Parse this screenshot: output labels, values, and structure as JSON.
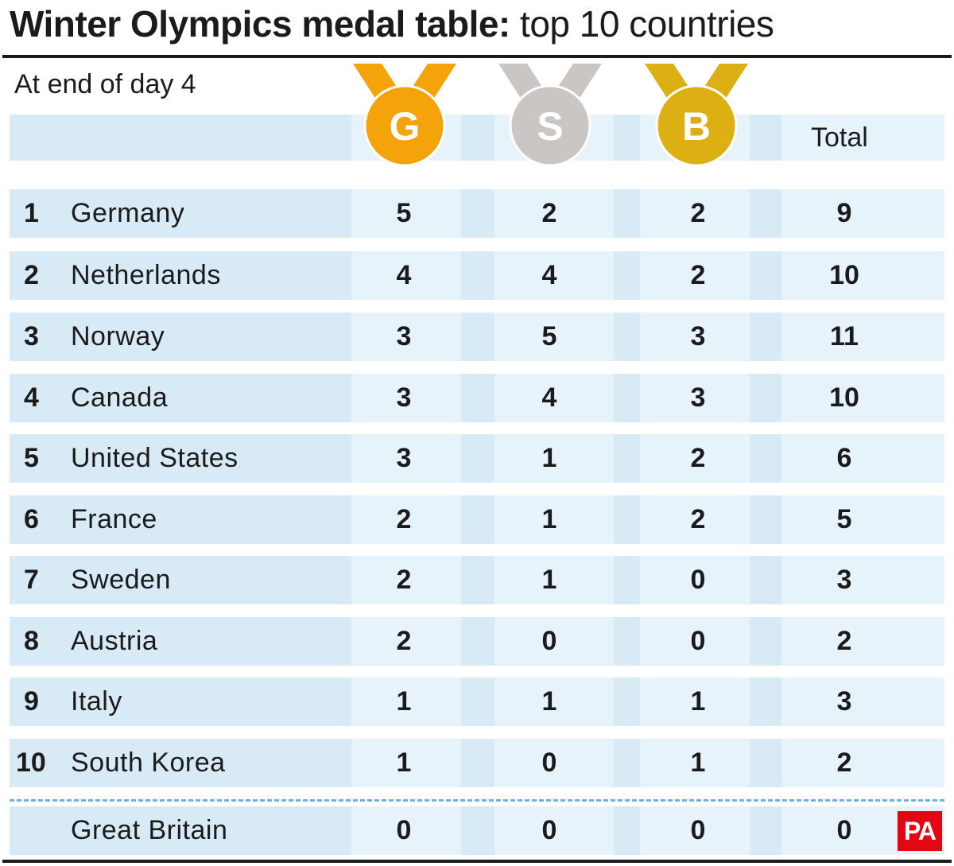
{
  "title_bold": "Winter Olympics medal table:",
  "title_light": "top 10 countries",
  "subtitle": "At end of day 4",
  "columns": {
    "gold_letter": "G",
    "silver_letter": "S",
    "bronze_letter": "B",
    "total": "Total"
  },
  "colors": {
    "gold": "#f4a30a",
    "silver": "#c9c6c4",
    "bronze": "#dcaf13",
    "band_dark": "#d7eaf6",
    "band_light": "#e7f3fa",
    "divider": "#6cb3dd",
    "pa_red": "#e30613"
  },
  "chart_data": {
    "type": "table",
    "title": "Winter Olympics medal table: top 10 countries",
    "subtitle": "At end of day 4",
    "headers": [
      "",
      "",
      "G",
      "S",
      "B",
      "Total"
    ],
    "rows": [
      {
        "rank": "1",
        "country": "Germany",
        "gold": "5",
        "silver": "2",
        "bronze": "2",
        "total": "9"
      },
      {
        "rank": "2",
        "country": "Netherlands",
        "gold": "4",
        "silver": "4",
        "bronze": "2",
        "total": "10"
      },
      {
        "rank": "3",
        "country": "Norway",
        "gold": "3",
        "silver": "5",
        "bronze": "3",
        "total": "11"
      },
      {
        "rank": "4",
        "country": "Canada",
        "gold": "3",
        "silver": "4",
        "bronze": "3",
        "total": "10"
      },
      {
        "rank": "5",
        "country": "United States",
        "gold": "3",
        "silver": "1",
        "bronze": "2",
        "total": "6"
      },
      {
        "rank": "6",
        "country": "France",
        "gold": "2",
        "silver": "1",
        "bronze": "2",
        "total": "5"
      },
      {
        "rank": "7",
        "country": "Sweden",
        "gold": "2",
        "silver": "1",
        "bronze": "0",
        "total": "3"
      },
      {
        "rank": "8",
        "country": "Austria",
        "gold": "2",
        "silver": "0",
        "bronze": "0",
        "total": "2"
      },
      {
        "rank": "9",
        "country": "Italy",
        "gold": "1",
        "silver": "1",
        "bronze": "1",
        "total": "3"
      },
      {
        "rank": "10",
        "country": "South Korea",
        "gold": "1",
        "silver": "0",
        "bronze": "1",
        "total": "2"
      }
    ],
    "extra_row": {
      "rank": "",
      "country": "Great Britain",
      "gold": "0",
      "silver": "0",
      "bronze": "0",
      "total": "0"
    }
  },
  "logo": {
    "text": "PA",
    "icon": "pa-logo"
  }
}
